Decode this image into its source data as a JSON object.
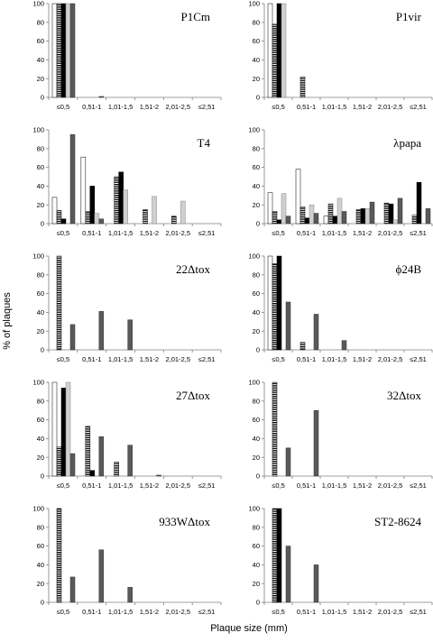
{
  "figure": {
    "ylabel": "% of plaques",
    "xlabel": "Plaque size (mm)"
  },
  "colors": {
    "s1": "#ffffff",
    "s2": "hatch",
    "s3": "#000000",
    "s4": "#d0d0d0",
    "s5": "#595959",
    "axis": "#808080"
  },
  "chart_data": [
    {
      "type": "bar",
      "title": "P1Cm",
      "categories": [
        "≤0,5",
        "0,51-1",
        "1,01-1,5",
        "1,51-2",
        "2,01-2,5",
        "≤2,51"
      ],
      "yticks": [
        0,
        20,
        40,
        60,
        80,
        100
      ],
      "ylim": [
        0,
        100
      ],
      "series": [
        {
          "values": [
            100,
            0,
            0,
            0,
            0,
            0
          ]
        },
        {
          "values": [
            100,
            0,
            0,
            0,
            0,
            0
          ]
        },
        {
          "values": [
            100,
            0,
            0,
            0,
            0,
            0
          ]
        },
        {
          "values": [
            100,
            0,
            0,
            0,
            0,
            0
          ]
        },
        {
          "values": [
            100,
            1,
            0,
            0,
            0,
            0
          ]
        }
      ]
    },
    {
      "type": "bar",
      "title": "P1vir",
      "categories": [
        "≤0,5",
        "0,51-1",
        "1,01-1,5",
        "1,51-2",
        "2,01-2,5",
        "≤2,51"
      ],
      "yticks": [
        0,
        20,
        40,
        60,
        80,
        100
      ],
      "ylim": [
        0,
        100
      ],
      "series": [
        {
          "values": [
            100,
            0,
            0,
            0,
            0,
            0
          ]
        },
        {
          "values": [
            78,
            22,
            0,
            0,
            0,
            0
          ]
        },
        {
          "values": [
            100,
            0,
            0,
            0,
            0,
            0
          ]
        },
        {
          "values": [
            100,
            0,
            0,
            0,
            0,
            0
          ]
        },
        {
          "values": [
            0,
            0,
            0,
            0,
            0,
            0
          ]
        }
      ]
    },
    {
      "type": "bar",
      "title": "T4",
      "categories": [
        "≤0,5",
        "0,51-1",
        "1,01-1,5",
        "1,51-2",
        "2,01-2,5",
        "≤2,51"
      ],
      "yticks": [
        0,
        20,
        40,
        60,
        80,
        100
      ],
      "ylim": [
        0,
        100
      ],
      "series": [
        {
          "values": [
            28,
            71,
            0,
            0,
            0,
            0
          ]
        },
        {
          "values": [
            14,
            13,
            50,
            15,
            8,
            0
          ]
        },
        {
          "values": [
            5,
            40,
            55,
            0,
            0,
            0
          ]
        },
        {
          "values": [
            0,
            11,
            36,
            29,
            24,
            0
          ]
        },
        {
          "values": [
            95,
            5,
            0,
            0,
            0,
            0
          ]
        }
      ]
    },
    {
      "type": "bar",
      "title": "λpapa",
      "categories": [
        "≤0,5",
        "0,51-1",
        "1,01-1,5",
        "1,51-2",
        "2,01-2,5",
        "≤2,51"
      ],
      "yticks": [
        0,
        20,
        40,
        60,
        80,
        100
      ],
      "ylim": [
        0,
        100
      ],
      "series": [
        {
          "values": [
            33,
            58,
            8,
            0,
            0,
            0
          ]
        },
        {
          "values": [
            13,
            18,
            21,
            15,
            22,
            9
          ]
        },
        {
          "values": [
            4,
            6,
            8,
            16,
            21,
            44
          ]
        },
        {
          "values": [
            32,
            20,
            27,
            16,
            4,
            0
          ]
        },
        {
          "values": [
            8,
            11,
            13,
            23,
            27,
            16
          ]
        }
      ]
    },
    {
      "type": "bar",
      "title": "22Δtox",
      "categories": [
        "≤0,5",
        "0,51-1",
        "1,01-1,5",
        "1,51-2",
        "2,01-2,5",
        "≤2,51"
      ],
      "yticks": [
        0,
        20,
        40,
        60,
        80,
        100
      ],
      "ylim": [
        0,
        100
      ],
      "series": [
        {
          "values": [
            0,
            0,
            0,
            0,
            0,
            0
          ]
        },
        {
          "values": [
            100,
            0,
            0,
            0,
            0,
            0
          ]
        },
        {
          "values": [
            0,
            0,
            0,
            0,
            0,
            0
          ]
        },
        {
          "values": [
            0,
            0,
            0,
            0,
            0,
            0
          ]
        },
        {
          "values": [
            27,
            41,
            32,
            0,
            0,
            0
          ]
        }
      ]
    },
    {
      "type": "bar",
      "title": "ϕ24B",
      "categories": [
        "≤0,5",
        "0,51-1",
        "1,01-1,5",
        "1,51-2",
        "2,01-2,5",
        "≤2,51"
      ],
      "yticks": [
        0,
        20,
        40,
        60,
        80,
        100
      ],
      "ylim": [
        0,
        100
      ],
      "series": [
        {
          "values": [
            100,
            0,
            0,
            0,
            0,
            0
          ]
        },
        {
          "values": [
            92,
            8,
            0,
            0,
            0,
            0
          ]
        },
        {
          "values": [
            100,
            0,
            0,
            0,
            0,
            0
          ]
        },
        {
          "values": [
            0,
            0,
            0,
            0,
            0,
            0
          ]
        },
        {
          "values": [
            51,
            38,
            10,
            0,
            0,
            0
          ]
        }
      ]
    },
    {
      "type": "bar",
      "title": "27Δtox",
      "categories": [
        "≤0,5",
        "0,51-1",
        "1,01-1,5",
        "1,51-2",
        "2,01-2,5",
        "≤2,51"
      ],
      "yticks": [
        0,
        20,
        40,
        60,
        80,
        100
      ],
      "ylim": [
        0,
        100
      ],
      "series": [
        {
          "values": [
            100,
            0,
            0,
            0,
            0,
            0
          ]
        },
        {
          "values": [
            31,
            53,
            15,
            0,
            0,
            0
          ]
        },
        {
          "values": [
            94,
            6,
            0,
            0,
            0,
            0
          ]
        },
        {
          "values": [
            100,
            0,
            0,
            0,
            0,
            0
          ]
        },
        {
          "values": [
            24,
            42,
            33,
            1,
            0,
            0
          ]
        }
      ]
    },
    {
      "type": "bar",
      "title": "32Δtox",
      "categories": [
        "≤0,5",
        "0,51-1",
        "1,01-1,5",
        "1,51-2",
        "2,01-2,5",
        "≤2,51"
      ],
      "yticks": [
        0,
        20,
        40,
        60,
        80,
        100
      ],
      "ylim": [
        0,
        100
      ],
      "series": [
        {
          "values": [
            0,
            0,
            0,
            0,
            0,
            0
          ]
        },
        {
          "values": [
            100,
            0,
            0,
            0,
            0,
            0
          ]
        },
        {
          "values": [
            0,
            0,
            0,
            0,
            0,
            0
          ]
        },
        {
          "values": [
            0,
            0,
            0,
            0,
            0,
            0
          ]
        },
        {
          "values": [
            30,
            70,
            0,
            0,
            0,
            0
          ]
        }
      ]
    },
    {
      "type": "bar",
      "title": "933WΔtox",
      "categories": [
        "≤0,5",
        "0,51-1",
        "1,01-1,5",
        "1,51-2",
        "2,01-2,5",
        "≤2,51"
      ],
      "yticks": [
        0,
        20,
        40,
        60,
        80,
        100
      ],
      "ylim": [
        0,
        100
      ],
      "series": [
        {
          "values": [
            0,
            0,
            0,
            0,
            0,
            0
          ]
        },
        {
          "values": [
            100,
            0,
            0,
            0,
            0,
            0
          ]
        },
        {
          "values": [
            0,
            0,
            0,
            0,
            0,
            0
          ]
        },
        {
          "values": [
            0,
            0,
            0,
            0,
            0,
            0
          ]
        },
        {
          "values": [
            27,
            56,
            16,
            0,
            0,
            0
          ]
        }
      ]
    },
    {
      "type": "bar",
      "title": "ST2-8624",
      "categories": [
        "≤0,5",
        "0,51-1",
        "1,01-1,5",
        "1,51-2",
        "2,01-2,5",
        "≤2,51"
      ],
      "yticks": [
        0,
        20,
        40,
        60,
        80,
        100
      ],
      "ylim": [
        0,
        100
      ],
      "series": [
        {
          "values": [
            0,
            0,
            0,
            0,
            0,
            0
          ]
        },
        {
          "values": [
            100,
            0,
            0,
            0,
            0,
            0
          ]
        },
        {
          "values": [
            100,
            0,
            0,
            0,
            0,
            0
          ]
        },
        {
          "values": [
            0,
            0,
            0,
            0,
            0,
            0
          ]
        },
        {
          "values": [
            60,
            40,
            0,
            0,
            0,
            0
          ]
        }
      ]
    }
  ]
}
